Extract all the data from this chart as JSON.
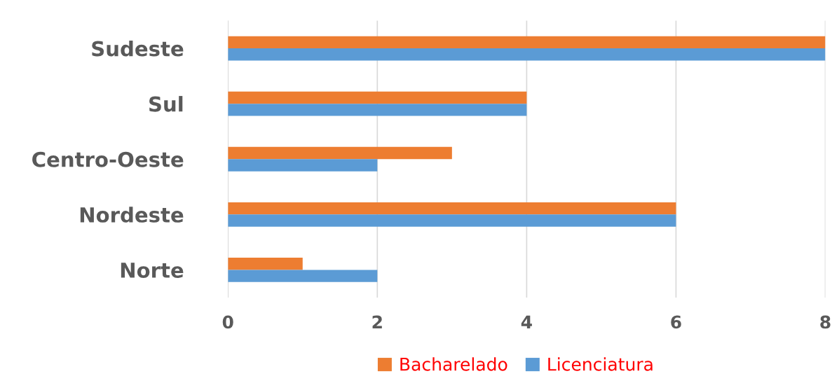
{
  "chart_data": {
    "type": "bar",
    "orientation": "horizontal",
    "categories": [
      "Sudeste",
      "Sul",
      "Centro-Oeste",
      "Nordeste",
      "Norte"
    ],
    "series": [
      {
        "name": "Bacharelado",
        "color": "#ed7d31",
        "values": [
          8,
          4,
          3,
          6,
          1
        ]
      },
      {
        "name": "Licenciatura",
        "color": "#5b9bd5",
        "values": [
          8,
          4,
          2,
          6,
          2
        ]
      }
    ],
    "xlim": [
      0,
      8
    ],
    "xticks": [
      0,
      2,
      4,
      6,
      8
    ],
    "grid": "x",
    "legend": "bottom"
  }
}
